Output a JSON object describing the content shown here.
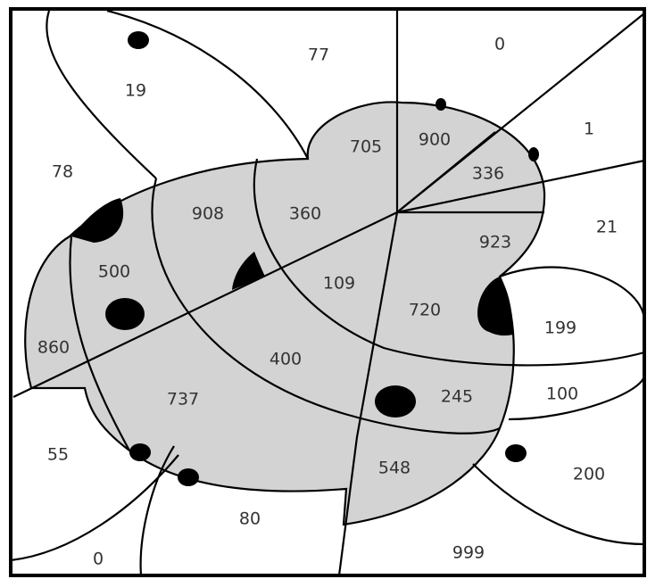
{
  "regions": [
    "19",
    "77",
    "0",
    "1",
    "21",
    "78",
    "705",
    "900",
    "336",
    "908",
    "360",
    "923",
    "500",
    "109",
    "720",
    "199",
    "860",
    "400",
    "737",
    "245",
    "100",
    "55",
    "548",
    "200",
    "80",
    "0",
    "999"
  ]
}
